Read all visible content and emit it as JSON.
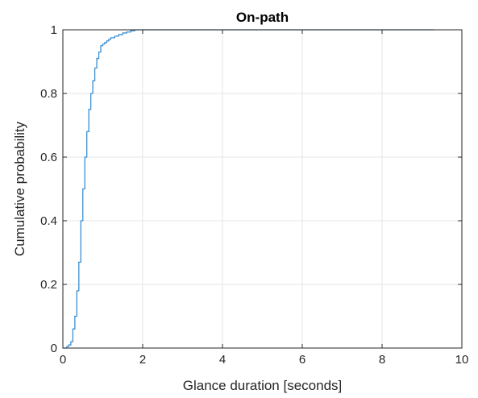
{
  "chart_data": {
    "type": "line",
    "title": "On-path",
    "xlabel": "Glance duration [seconds]",
    "ylabel": "Cumulative probability",
    "xlim": [
      0,
      10
    ],
    "ylim": [
      0,
      1
    ],
    "xticks": [
      0,
      2,
      4,
      6,
      8,
      10
    ],
    "yticks": [
      0,
      0.2,
      0.4,
      0.6,
      0.8,
      1
    ],
    "xtick_labels": [
      "0",
      "2",
      "4",
      "6",
      "8",
      "10"
    ],
    "ytick_labels": [
      "0",
      "0.2",
      "0.4",
      "0.6",
      "0.8",
      "1"
    ],
    "grid": true,
    "step": true,
    "series": [
      {
        "color": "#3b8fd1",
        "x": [
          0,
          0.1,
          0.15,
          0.2,
          0.25,
          0.3,
          0.35,
          0.4,
          0.45,
          0.5,
          0.55,
          0.6,
          0.65,
          0.7,
          0.75,
          0.8,
          0.85,
          0.9,
          0.95,
          1.0,
          1.05,
          1.1,
          1.15,
          1.2,
          1.3,
          1.4,
          1.5,
          1.6,
          1.7,
          1.8,
          2.0,
          9.3
        ],
        "y": [
          0,
          0.005,
          0.01,
          0.02,
          0.06,
          0.1,
          0.18,
          0.27,
          0.4,
          0.5,
          0.6,
          0.68,
          0.75,
          0.8,
          0.84,
          0.88,
          0.91,
          0.93,
          0.95,
          0.955,
          0.96,
          0.965,
          0.97,
          0.975,
          0.98,
          0.985,
          0.99,
          0.993,
          0.997,
          1.0,
          1.0,
          1.0
        ]
      }
    ]
  }
}
